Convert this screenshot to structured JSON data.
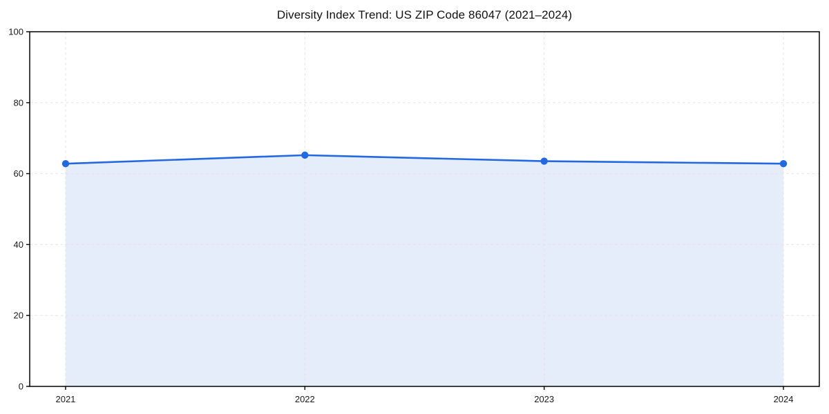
{
  "chart_data": {
    "type": "line",
    "title": "Diversity Index Trend: US ZIP Code 86047 (2021–2024)",
    "categories": [
      "2021",
      "2022",
      "2023",
      "2024"
    ],
    "x": [
      2021,
      2022,
      2023,
      2024
    ],
    "series": [
      {
        "name": "Diversity Index",
        "values": [
          62.8,
          65.2,
          63.5,
          62.8
        ]
      }
    ],
    "area_fill": true,
    "markers": true,
    "xlabel": "",
    "ylabel": "",
    "xlim": [
      2020.85,
      2024.15
    ],
    "ylim": [
      0,
      100
    ],
    "y_ticks": [
      0,
      20,
      40,
      60,
      80,
      100
    ],
    "grid": "dashed",
    "legend_position": "none",
    "colors": {
      "line": "#2268E0",
      "marker": "#2268E0",
      "area": "rgba(40, 105, 224, 0.12)",
      "grid": "#e2e2e2",
      "spine": "#000000",
      "tick": "#1a1a1a",
      "title": "#111111",
      "background": "#ffffff"
    }
  }
}
